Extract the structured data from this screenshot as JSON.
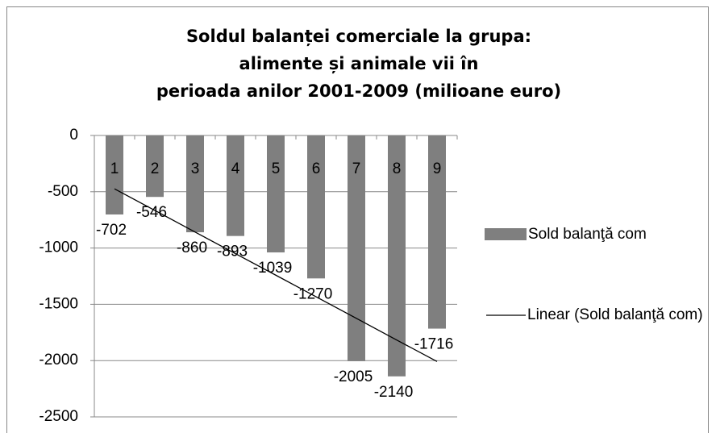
{
  "chart_data": {
    "type": "bar",
    "title": [
      "Soldul balanței comerciale la grupa:",
      "alimente și animale vii în",
      "perioada anilor 2001-2009 (milioane euro)"
    ],
    "categories": [
      "1",
      "2",
      "3",
      "4",
      "5",
      "6",
      "7",
      "8",
      "9"
    ],
    "series": [
      {
        "name": "Sold balanţă com",
        "type": "bar",
        "color": "#7f7f7f",
        "values": [
          -702,
          -546,
          -860,
          -893,
          -1039,
          -1270,
          -2005,
          -2140,
          -1716
        ]
      },
      {
        "name": "Linear (Sold balanţă com)",
        "type": "line",
        "color": "#000000",
        "values": [
          -474,
          -666,
          -858,
          -1050,
          -1241,
          -1433,
          -1625,
          -1817,
          -2008
        ]
      }
    ],
    "ylim": [
      -2500,
      0
    ],
    "yticks": [
      0,
      -500,
      -1000,
      -1500,
      -2000,
      -2500
    ],
    "grid": true,
    "legend": "right"
  }
}
